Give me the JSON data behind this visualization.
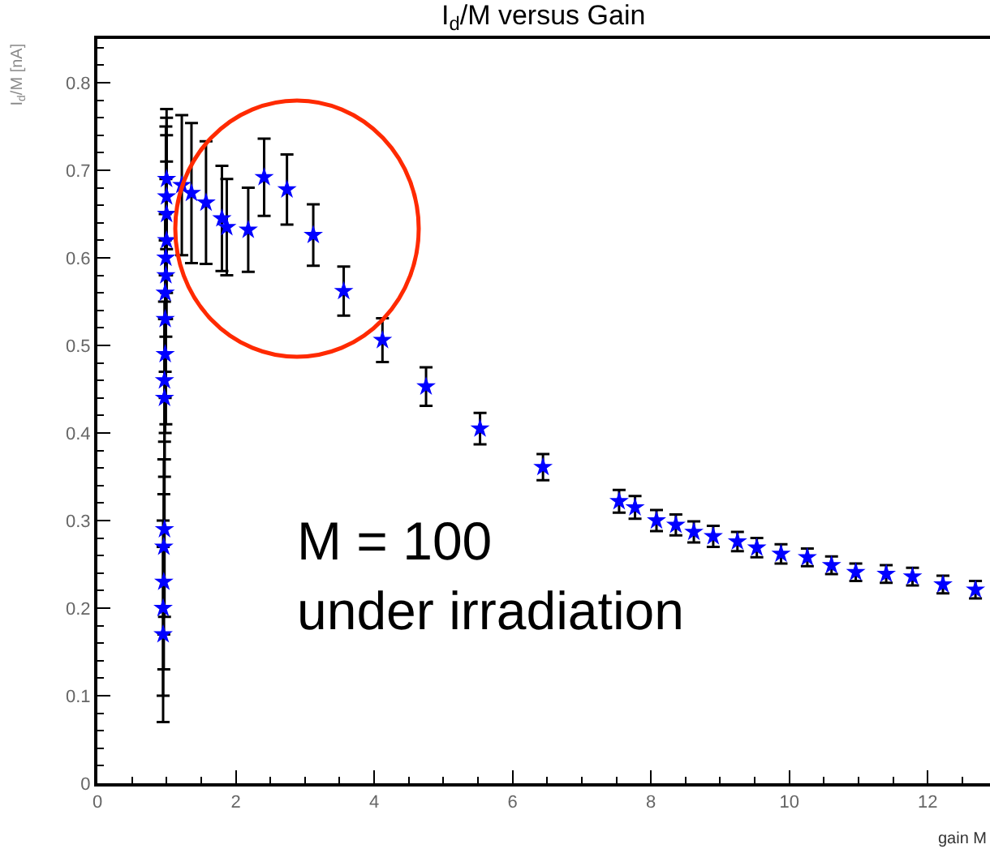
{
  "chart_data": {
    "type": "scatter",
    "title": "I$_{d}$/M versus Gain",
    "xlabel": "gain M",
    "ylabel": "I$_{d}$/M [nA]",
    "x": [
      0.95,
      0.95,
      0.96,
      0.96,
      0.97,
      0.97,
      0.97,
      0.98,
      0.98,
      0.98,
      0.99,
      0.99,
      1.0,
      1.0,
      1.0,
      1.0,
      1.22,
      1.36,
      1.57,
      1.8,
      1.87,
      2.18,
      2.41,
      2.74,
      3.12,
      3.56,
      4.12,
      4.75,
      5.53,
      6.44,
      7.54,
      7.77,
      8.08,
      8.36,
      8.62,
      8.9,
      9.25,
      9.53,
      9.88,
      10.26,
      10.61,
      10.96,
      11.4,
      11.78,
      12.22,
      12.69
    ],
    "series": [
      {
        "color": "#0000ff",
        "values": [
          0.17,
          0.2,
          0.23,
          0.27,
          0.29,
          0.44,
          0.46,
          0.49,
          0.53,
          0.56,
          0.58,
          0.6,
          0.62,
          0.65,
          0.67,
          0.69,
          0.683,
          0.674,
          0.663,
          0.645,
          0.635,
          0.632,
          0.692,
          0.678,
          0.626,
          0.562,
          0.506,
          0.453,
          0.405,
          0.361,
          0.322,
          0.315,
          0.3,
          0.295,
          0.287,
          0.282,
          0.276,
          0.269,
          0.262,
          0.258,
          0.249,
          0.241,
          0.239,
          0.236,
          0.227,
          0.221
        ],
        "errors": [
          0.1,
          0.1,
          0.1,
          0.1,
          0.1,
          0.09,
          0.09,
          0.09,
          0.09,
          0.09,
          0.17,
          0.09,
          0.09,
          0.09,
          0.09,
          0.08,
          0.08,
          0.08,
          0.07,
          0.06,
          0.055,
          0.048,
          0.044,
          0.04,
          0.035,
          0.028,
          0.025,
          0.022,
          0.018,
          0.015,
          0.013,
          0.013,
          0.012,
          0.012,
          0.012,
          0.012,
          0.011,
          0.011,
          0.011,
          0.01,
          0.01,
          0.01,
          0.01,
          0.01,
          0.01,
          0.01
        ]
      }
    ],
    "xlim": [
      0,
      12.9
    ],
    "xticks": [
      0,
      2,
      4,
      6,
      8,
      10,
      12
    ],
    "ylim": [
      0,
      0.85
    ],
    "yticks": [
      0,
      0.1,
      0.2,
      0.3,
      0.4,
      0.5,
      0.6,
      0.7,
      0.8
    ],
    "marker": "star",
    "grid": false,
    "annotations": [
      "M = 100\nunder irradiation"
    ]
  }
}
